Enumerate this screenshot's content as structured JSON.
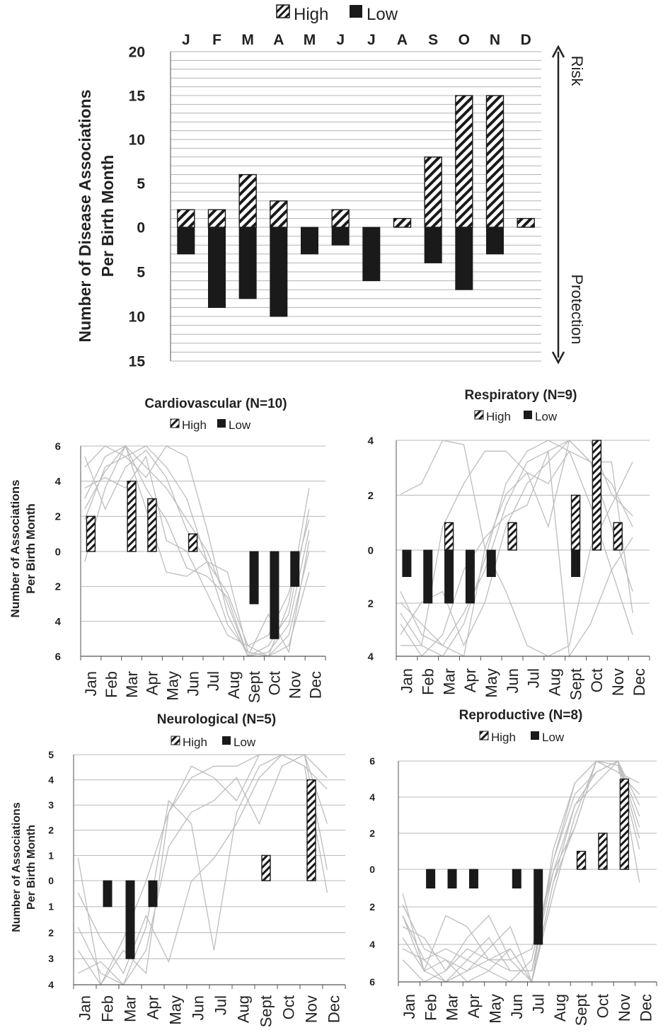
{
  "legend": {
    "high": "High",
    "low": "Low"
  },
  "chart_data": [
    {
      "id": "main",
      "type": "bar",
      "ylabel": "Number of Disease Associations Per Birth Month",
      "ylabel_lines": [
        "Number of Disease Associations",
        "Per Birth Month"
      ],
      "categories": [
        "J",
        "F",
        "M",
        "A",
        "M",
        "J",
        "J",
        "A",
        "S",
        "O",
        "N",
        "D"
      ],
      "y_ticks_up": [
        20,
        15,
        10,
        5,
        0
      ],
      "y_ticks_down": [
        5,
        10,
        15
      ],
      "ylim": [
        -15,
        20
      ],
      "annotation_up": "Risk",
      "annotation_down": "Protection",
      "legend_position": "top",
      "series": [
        {
          "name": "High",
          "values": [
            2,
            2,
            6,
            3,
            0,
            2,
            0,
            1,
            8,
            15,
            15,
            1
          ]
        },
        {
          "name": "Low",
          "values": [
            3,
            9,
            8,
            10,
            3,
            2,
            6,
            0,
            4,
            7,
            3,
            0
          ]
        }
      ]
    },
    {
      "id": "cardio",
      "type": "bar",
      "title": "Cardiovascular (N=10)",
      "ylabel_lines": [
        "Number of Associations",
        "Per Birth Month"
      ],
      "categories": [
        "Jan",
        "Feb",
        "Mar",
        "Apr",
        "May",
        "Jun",
        "Jul",
        "Aug",
        "Sept",
        "Oct",
        "Nov",
        "Dec"
      ],
      "y_ticks_up": [
        6,
        4,
        2,
        0
      ],
      "y_ticks_down": [
        2,
        4,
        6
      ],
      "ylim": [
        -6,
        6
      ],
      "series": [
        {
          "name": "High",
          "values": [
            2,
            0,
            4,
            3,
            0,
            1,
            0,
            0,
            0,
            0,
            0,
            0
          ]
        },
        {
          "name": "Low",
          "values": [
            0,
            0,
            0,
            0,
            0,
            0,
            0,
            0,
            3,
            5,
            2,
            0
          ]
        }
      ]
    },
    {
      "id": "resp",
      "type": "bar",
      "title": "Respiratory (N=9)",
      "categories": [
        "Jan",
        "Feb",
        "Mar",
        "Apr",
        "May",
        "Jun",
        "Jul",
        "Aug",
        "Sept",
        "Oct",
        "Nov",
        "Dec"
      ],
      "y_ticks_up": [
        4,
        2,
        0
      ],
      "y_ticks_down": [
        2,
        4
      ],
      "ylim": [
        -4,
        4
      ],
      "series": [
        {
          "name": "High",
          "values": [
            0,
            0,
            1,
            0,
            0,
            1,
            0,
            0,
            2,
            4,
            1,
            0
          ]
        },
        {
          "name": "Low",
          "values": [
            1,
            2,
            2,
            2,
            1,
            0,
            0,
            0,
            1,
            0,
            0,
            0
          ]
        }
      ]
    },
    {
      "id": "neuro",
      "type": "bar",
      "title": "Neurological (N=5)",
      "ylabel_lines": [
        "Number of Associations",
        "Per Birth Month"
      ],
      "categories": [
        "Jan",
        "Feb",
        "Mar",
        "Apr",
        "May",
        "Jun",
        "Jul",
        "Aug",
        "Sept",
        "Oct",
        "Nov",
        "Dec"
      ],
      "y_ticks_up": [
        5,
        4,
        3,
        2,
        1,
        0
      ],
      "y_ticks_down": [
        1,
        2,
        3,
        4
      ],
      "ylim": [
        -4,
        5
      ],
      "series": [
        {
          "name": "High",
          "values": [
            0,
            0,
            0,
            0,
            0,
            0,
            0,
            0,
            1,
            0,
            4,
            0
          ]
        },
        {
          "name": "Low",
          "values": [
            0,
            1,
            3,
            1,
            0,
            0,
            0,
            0,
            0,
            0,
            0,
            0
          ]
        }
      ]
    },
    {
      "id": "repro",
      "type": "bar",
      "title": "Reproductive (N=8)",
      "categories": [
        "Jan",
        "Feb",
        "Mar",
        "Apr",
        "May",
        "Jun",
        "Jul",
        "Aug",
        "Sept",
        "Oct",
        "Nov",
        "Dec"
      ],
      "y_ticks_up": [
        6,
        4,
        2,
        0
      ],
      "y_ticks_down": [
        2,
        4,
        6
      ],
      "ylim": [
        -6,
        6
      ],
      "series": [
        {
          "name": "High",
          "values": [
            0,
            0,
            0,
            0,
            0,
            0,
            0,
            0,
            1,
            2,
            5,
            0
          ]
        },
        {
          "name": "Low",
          "values": [
            0,
            1,
            1,
            1,
            0,
            1,
            4,
            0,
            0,
            0,
            0,
            0
          ]
        }
      ]
    }
  ]
}
